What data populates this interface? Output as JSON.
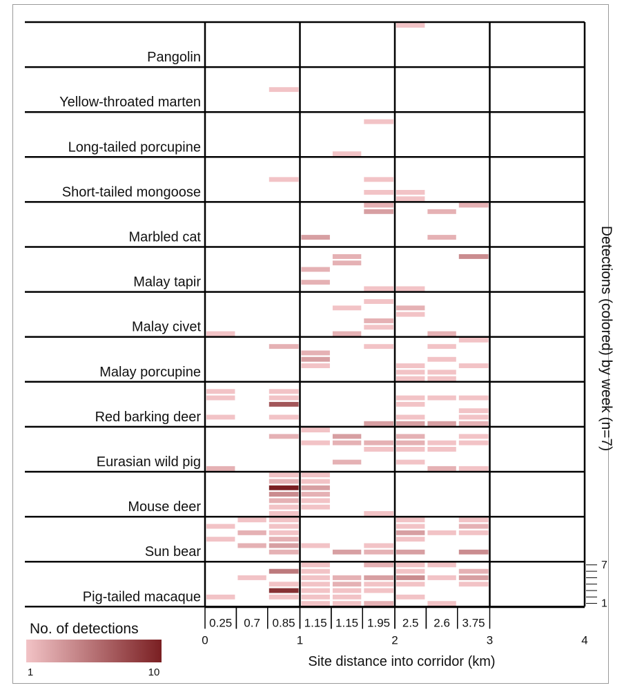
{
  "chart_data": {
    "type": "heatmap",
    "title": "",
    "xlabel": "Site distance into corridor (km)",
    "ylabel": "Detections  (colored) by week (n=7)",
    "x_ticks": [
      "0",
      "1",
      "2",
      "3",
      "4"
    ],
    "xlim": [
      0,
      4
    ],
    "sites": [
      "0.25",
      "0.7",
      "0.85",
      "1.15",
      "1.15",
      "1.95",
      "2.5",
      "2.6",
      "3.75"
    ],
    "site_columns": [
      [
        0,
        0.33
      ],
      [
        0.33,
        0.66
      ],
      [
        0.66,
        1.0
      ],
      [
        1.0,
        1.33
      ],
      [
        1.33,
        1.66
      ],
      [
        1.66,
        2.0
      ],
      [
        2.0,
        2.33
      ],
      [
        2.33,
        2.66
      ],
      [
        2.66,
        3.0
      ]
    ],
    "species": [
      "Pangolin",
      "Yellow-throated marten",
      "Long-tailed porcupine",
      "Short-tailed mongoose",
      "Marbled cat",
      "Malay tapir",
      "Malay civet",
      "Malay porcupine",
      "Red barking deer",
      "Eurasian wild pig",
      "Mouse deer",
      "Sun bear",
      "Pig-tailed macaque"
    ],
    "weeks_per_species": 7,
    "week_axis_labels": [
      "7",
      "1"
    ],
    "legend": {
      "title": "No. of detections",
      "min_label": "1",
      "max_label": "10",
      "min": 1,
      "max": 10,
      "color_low": "#f2c3c6",
      "color_high": "#7a1f22"
    },
    "cells": [
      {
        "s": 0,
        "c": 6,
        "w": 7,
        "v": 1
      },
      {
        "s": 1,
        "c": 2,
        "w": 4,
        "v": 1
      },
      {
        "s": 2,
        "c": 5,
        "w": 6,
        "v": 1
      },
      {
        "s": 2,
        "c": 4,
        "w": 1,
        "v": 1
      },
      {
        "s": 3,
        "c": 2,
        "w": 4,
        "v": 1
      },
      {
        "s": 3,
        "c": 5,
        "w": 4,
        "v": 1
      },
      {
        "s": 3,
        "c": 5,
        "w": 2,
        "v": 1
      },
      {
        "s": 3,
        "c": 6,
        "w": 2,
        "v": 1
      },
      {
        "s": 3,
        "c": 6,
        "w": 1,
        "v": 1
      },
      {
        "s": 4,
        "c": 5,
        "w": 7,
        "v": 2
      },
      {
        "s": 4,
        "c": 5,
        "w": 6,
        "v": 3
      },
      {
        "s": 4,
        "c": 7,
        "w": 6,
        "v": 2
      },
      {
        "s": 4,
        "c": 8,
        "w": 7,
        "v": 2
      },
      {
        "s": 4,
        "c": 3,
        "w": 2,
        "v": 3
      },
      {
        "s": 4,
        "c": 7,
        "w": 2,
        "v": 2
      },
      {
        "s": 5,
        "c": 8,
        "w": 6,
        "v": 4
      },
      {
        "s": 5,
        "c": 4,
        "w": 6,
        "v": 2
      },
      {
        "s": 5,
        "c": 4,
        "w": 5,
        "v": 2
      },
      {
        "s": 5,
        "c": 3,
        "w": 4,
        "v": 2
      },
      {
        "s": 5,
        "c": 3,
        "w": 2,
        "v": 2
      },
      {
        "s": 5,
        "c": 5,
        "w": 1,
        "v": 1
      },
      {
        "s": 5,
        "c": 6,
        "w": 1,
        "v": 1
      },
      {
        "s": 6,
        "c": 5,
        "w": 6,
        "v": 1
      },
      {
        "s": 6,
        "c": 4,
        "w": 5,
        "v": 1
      },
      {
        "s": 6,
        "c": 6,
        "w": 5,
        "v": 2
      },
      {
        "s": 6,
        "c": 6,
        "w": 4,
        "v": 1
      },
      {
        "s": 6,
        "c": 5,
        "w": 3,
        "v": 2
      },
      {
        "s": 6,
        "c": 5,
        "w": 2,
        "v": 1
      },
      {
        "s": 6,
        "c": 0,
        "w": 1,
        "v": 1
      },
      {
        "s": 6,
        "c": 4,
        "w": 1,
        "v": 2
      },
      {
        "s": 6,
        "c": 7,
        "w": 1,
        "v": 2
      },
      {
        "s": 7,
        "c": 8,
        "w": 7,
        "v": 1
      },
      {
        "s": 7,
        "c": 2,
        "w": 6,
        "v": 2
      },
      {
        "s": 7,
        "c": 5,
        "w": 6,
        "v": 1
      },
      {
        "s": 7,
        "c": 7,
        "w": 6,
        "v": 1
      },
      {
        "s": 7,
        "c": 3,
        "w": 5,
        "v": 2
      },
      {
        "s": 7,
        "c": 3,
        "w": 4,
        "v": 3
      },
      {
        "s": 7,
        "c": 7,
        "w": 4,
        "v": 1
      },
      {
        "s": 7,
        "c": 3,
        "w": 3,
        "v": 1
      },
      {
        "s": 7,
        "c": 6,
        "w": 3,
        "v": 1
      },
      {
        "s": 7,
        "c": 8,
        "w": 3,
        "v": 1
      },
      {
        "s": 7,
        "c": 7,
        "w": 2,
        "v": 1
      },
      {
        "s": 7,
        "c": 6,
        "w": 2,
        "v": 1
      },
      {
        "s": 7,
        "c": 6,
        "w": 1,
        "v": 1
      },
      {
        "s": 7,
        "c": 7,
        "w": 1,
        "v": 1
      },
      {
        "s": 8,
        "c": 0,
        "w": 6,
        "v": 1
      },
      {
        "s": 8,
        "c": 2,
        "w": 6,
        "v": 1
      },
      {
        "s": 8,
        "c": 0,
        "w": 5,
        "v": 1
      },
      {
        "s": 8,
        "c": 2,
        "w": 5,
        "v": 1
      },
      {
        "s": 8,
        "c": 6,
        "w": 5,
        "v": 1
      },
      {
        "s": 8,
        "c": 7,
        "w": 5,
        "v": 1
      },
      {
        "s": 8,
        "c": 8,
        "w": 5,
        "v": 1
      },
      {
        "s": 8,
        "c": 2,
        "w": 4,
        "v": 7
      },
      {
        "s": 8,
        "c": 6,
        "w": 4,
        "v": 1
      },
      {
        "s": 8,
        "c": 8,
        "w": 3,
        "v": 1
      },
      {
        "s": 8,
        "c": 0,
        "w": 2,
        "v": 1
      },
      {
        "s": 8,
        "c": 2,
        "w": 2,
        "v": 1
      },
      {
        "s": 8,
        "c": 6,
        "w": 2,
        "v": 1
      },
      {
        "s": 8,
        "c": 8,
        "w": 2,
        "v": 1
      },
      {
        "s": 8,
        "c": 5,
        "w": 1,
        "v": 3
      },
      {
        "s": 8,
        "c": 6,
        "w": 1,
        "v": 3
      },
      {
        "s": 8,
        "c": 7,
        "w": 1,
        "v": 3
      },
      {
        "s": 8,
        "c": 8,
        "w": 1,
        "v": 2
      },
      {
        "s": 9,
        "c": 3,
        "w": 7,
        "v": 1
      },
      {
        "s": 9,
        "c": 2,
        "w": 6,
        "v": 2
      },
      {
        "s": 9,
        "c": 4,
        "w": 6,
        "v": 3
      },
      {
        "s": 9,
        "c": 6,
        "w": 6,
        "v": 2
      },
      {
        "s": 9,
        "c": 8,
        "w": 6,
        "v": 1
      },
      {
        "s": 9,
        "c": 3,
        "w": 5,
        "v": 1
      },
      {
        "s": 9,
        "c": 4,
        "w": 5,
        "v": 2
      },
      {
        "s": 9,
        "c": 5,
        "w": 5,
        "v": 2
      },
      {
        "s": 9,
        "c": 6,
        "w": 5,
        "v": 2
      },
      {
        "s": 9,
        "c": 7,
        "w": 5,
        "v": 1
      },
      {
        "s": 9,
        "c": 8,
        "w": 5,
        "v": 1
      },
      {
        "s": 9,
        "c": 5,
        "w": 4,
        "v": 1
      },
      {
        "s": 9,
        "c": 6,
        "w": 4,
        "v": 1
      },
      {
        "s": 9,
        "c": 7,
        "w": 4,
        "v": 1
      },
      {
        "s": 9,
        "c": 4,
        "w": 2,
        "v": 2
      },
      {
        "s": 9,
        "c": 6,
        "w": 2,
        "v": 1
      },
      {
        "s": 9,
        "c": 0,
        "w": 1,
        "v": 2
      },
      {
        "s": 9,
        "c": 7,
        "w": 1,
        "v": 2
      },
      {
        "s": 9,
        "c": 8,
        "w": 1,
        "v": 1
      },
      {
        "s": 10,
        "c": 2,
        "w": 7,
        "v": 1
      },
      {
        "s": 10,
        "c": 3,
        "w": 7,
        "v": 1
      },
      {
        "s": 10,
        "c": 2,
        "w": 6,
        "v": 2
      },
      {
        "s": 10,
        "c": 3,
        "w": 6,
        "v": 1
      },
      {
        "s": 10,
        "c": 2,
        "w": 5,
        "v": 10
      },
      {
        "s": 10,
        "c": 3,
        "w": 5,
        "v": 3
      },
      {
        "s": 10,
        "c": 2,
        "w": 4,
        "v": 4
      },
      {
        "s": 10,
        "c": 3,
        "w": 4,
        "v": 2
      },
      {
        "s": 10,
        "c": 2,
        "w": 3,
        "v": 2
      },
      {
        "s": 10,
        "c": 3,
        "w": 3,
        "v": 1
      },
      {
        "s": 10,
        "c": 2,
        "w": 2,
        "v": 1
      },
      {
        "s": 10,
        "c": 3,
        "w": 2,
        "v": 1
      },
      {
        "s": 10,
        "c": 2,
        "w": 1,
        "v": 1
      },
      {
        "s": 10,
        "c": 5,
        "w": 1,
        "v": 1
      },
      {
        "s": 11,
        "c": 1,
        "w": 7,
        "v": 1
      },
      {
        "s": 11,
        "c": 2,
        "w": 7,
        "v": 1
      },
      {
        "s": 11,
        "c": 6,
        "w": 7,
        "v": 1
      },
      {
        "s": 11,
        "c": 8,
        "w": 7,
        "v": 1
      },
      {
        "s": 11,
        "c": 0,
        "w": 6,
        "v": 1
      },
      {
        "s": 11,
        "c": 2,
        "w": 6,
        "v": 1
      },
      {
        "s": 11,
        "c": 6,
        "w": 6,
        "v": 1
      },
      {
        "s": 11,
        "c": 8,
        "w": 6,
        "v": 2
      },
      {
        "s": 11,
        "c": 1,
        "w": 5,
        "v": 2
      },
      {
        "s": 11,
        "c": 2,
        "w": 5,
        "v": 1
      },
      {
        "s": 11,
        "c": 6,
        "w": 5,
        "v": 3
      },
      {
        "s": 11,
        "c": 7,
        "w": 5,
        "v": 1
      },
      {
        "s": 11,
        "c": 8,
        "w": 5,
        "v": 1
      },
      {
        "s": 11,
        "c": 0,
        "w": 4,
        "v": 1
      },
      {
        "s": 11,
        "c": 2,
        "w": 4,
        "v": 2
      },
      {
        "s": 11,
        "c": 6,
        "w": 4,
        "v": 1
      },
      {
        "s": 11,
        "c": 1,
        "w": 3,
        "v": 2
      },
      {
        "s": 11,
        "c": 2,
        "w": 3,
        "v": 3
      },
      {
        "s": 11,
        "c": 3,
        "w": 3,
        "v": 1
      },
      {
        "s": 11,
        "c": 5,
        "w": 3,
        "v": 1
      },
      {
        "s": 11,
        "c": 2,
        "w": 2,
        "v": 2
      },
      {
        "s": 11,
        "c": 4,
        "w": 2,
        "v": 3
      },
      {
        "s": 11,
        "c": 5,
        "w": 2,
        "v": 2
      },
      {
        "s": 11,
        "c": 6,
        "w": 2,
        "v": 3
      },
      {
        "s": 11,
        "c": 8,
        "w": 2,
        "v": 4
      },
      {
        "s": 12,
        "c": 3,
        "w": 7,
        "v": 1
      },
      {
        "s": 12,
        "c": 5,
        "w": 7,
        "v": 2
      },
      {
        "s": 12,
        "c": 6,
        "w": 7,
        "v": 1
      },
      {
        "s": 12,
        "c": 7,
        "w": 7,
        "v": 1
      },
      {
        "s": 12,
        "c": 2,
        "w": 6,
        "v": 5
      },
      {
        "s": 12,
        "c": 3,
        "w": 6,
        "v": 1
      },
      {
        "s": 12,
        "c": 6,
        "w": 6,
        "v": 1
      },
      {
        "s": 12,
        "c": 8,
        "w": 6,
        "v": 2
      },
      {
        "s": 12,
        "c": 1,
        "w": 5,
        "v": 1
      },
      {
        "s": 12,
        "c": 3,
        "w": 5,
        "v": 1
      },
      {
        "s": 12,
        "c": 4,
        "w": 5,
        "v": 2
      },
      {
        "s": 12,
        "c": 5,
        "w": 5,
        "v": 3
      },
      {
        "s": 12,
        "c": 6,
        "w": 5,
        "v": 4
      },
      {
        "s": 12,
        "c": 7,
        "w": 5,
        "v": 1
      },
      {
        "s": 12,
        "c": 8,
        "w": 5,
        "v": 3
      },
      {
        "s": 12,
        "c": 2,
        "w": 4,
        "v": 1
      },
      {
        "s": 12,
        "c": 3,
        "w": 4,
        "v": 1
      },
      {
        "s": 12,
        "c": 4,
        "w": 4,
        "v": 2
      },
      {
        "s": 12,
        "c": 5,
        "w": 4,
        "v": 1
      },
      {
        "s": 12,
        "c": 6,
        "w": 4,
        "v": 1
      },
      {
        "s": 12,
        "c": 8,
        "w": 4,
        "v": 1
      },
      {
        "s": 12,
        "c": 2,
        "w": 3,
        "v": 9
      },
      {
        "s": 12,
        "c": 3,
        "w": 3,
        "v": 1
      },
      {
        "s": 12,
        "c": 4,
        "w": 3,
        "v": 1
      },
      {
        "s": 12,
        "c": 5,
        "w": 3,
        "v": 1
      },
      {
        "s": 12,
        "c": 0,
        "w": 2,
        "v": 1
      },
      {
        "s": 12,
        "c": 2,
        "w": 2,
        "v": 1
      },
      {
        "s": 12,
        "c": 3,
        "w": 2,
        "v": 1
      },
      {
        "s": 12,
        "c": 4,
        "w": 2,
        "v": 1
      },
      {
        "s": 12,
        "c": 6,
        "w": 2,
        "v": 1
      },
      {
        "s": 12,
        "c": 3,
        "w": 1,
        "v": 1
      },
      {
        "s": 12,
        "c": 4,
        "w": 1,
        "v": 1
      },
      {
        "s": 12,
        "c": 5,
        "w": 1,
        "v": 2
      },
      {
        "s": 12,
        "c": 7,
        "w": 1,
        "v": 1
      }
    ]
  }
}
